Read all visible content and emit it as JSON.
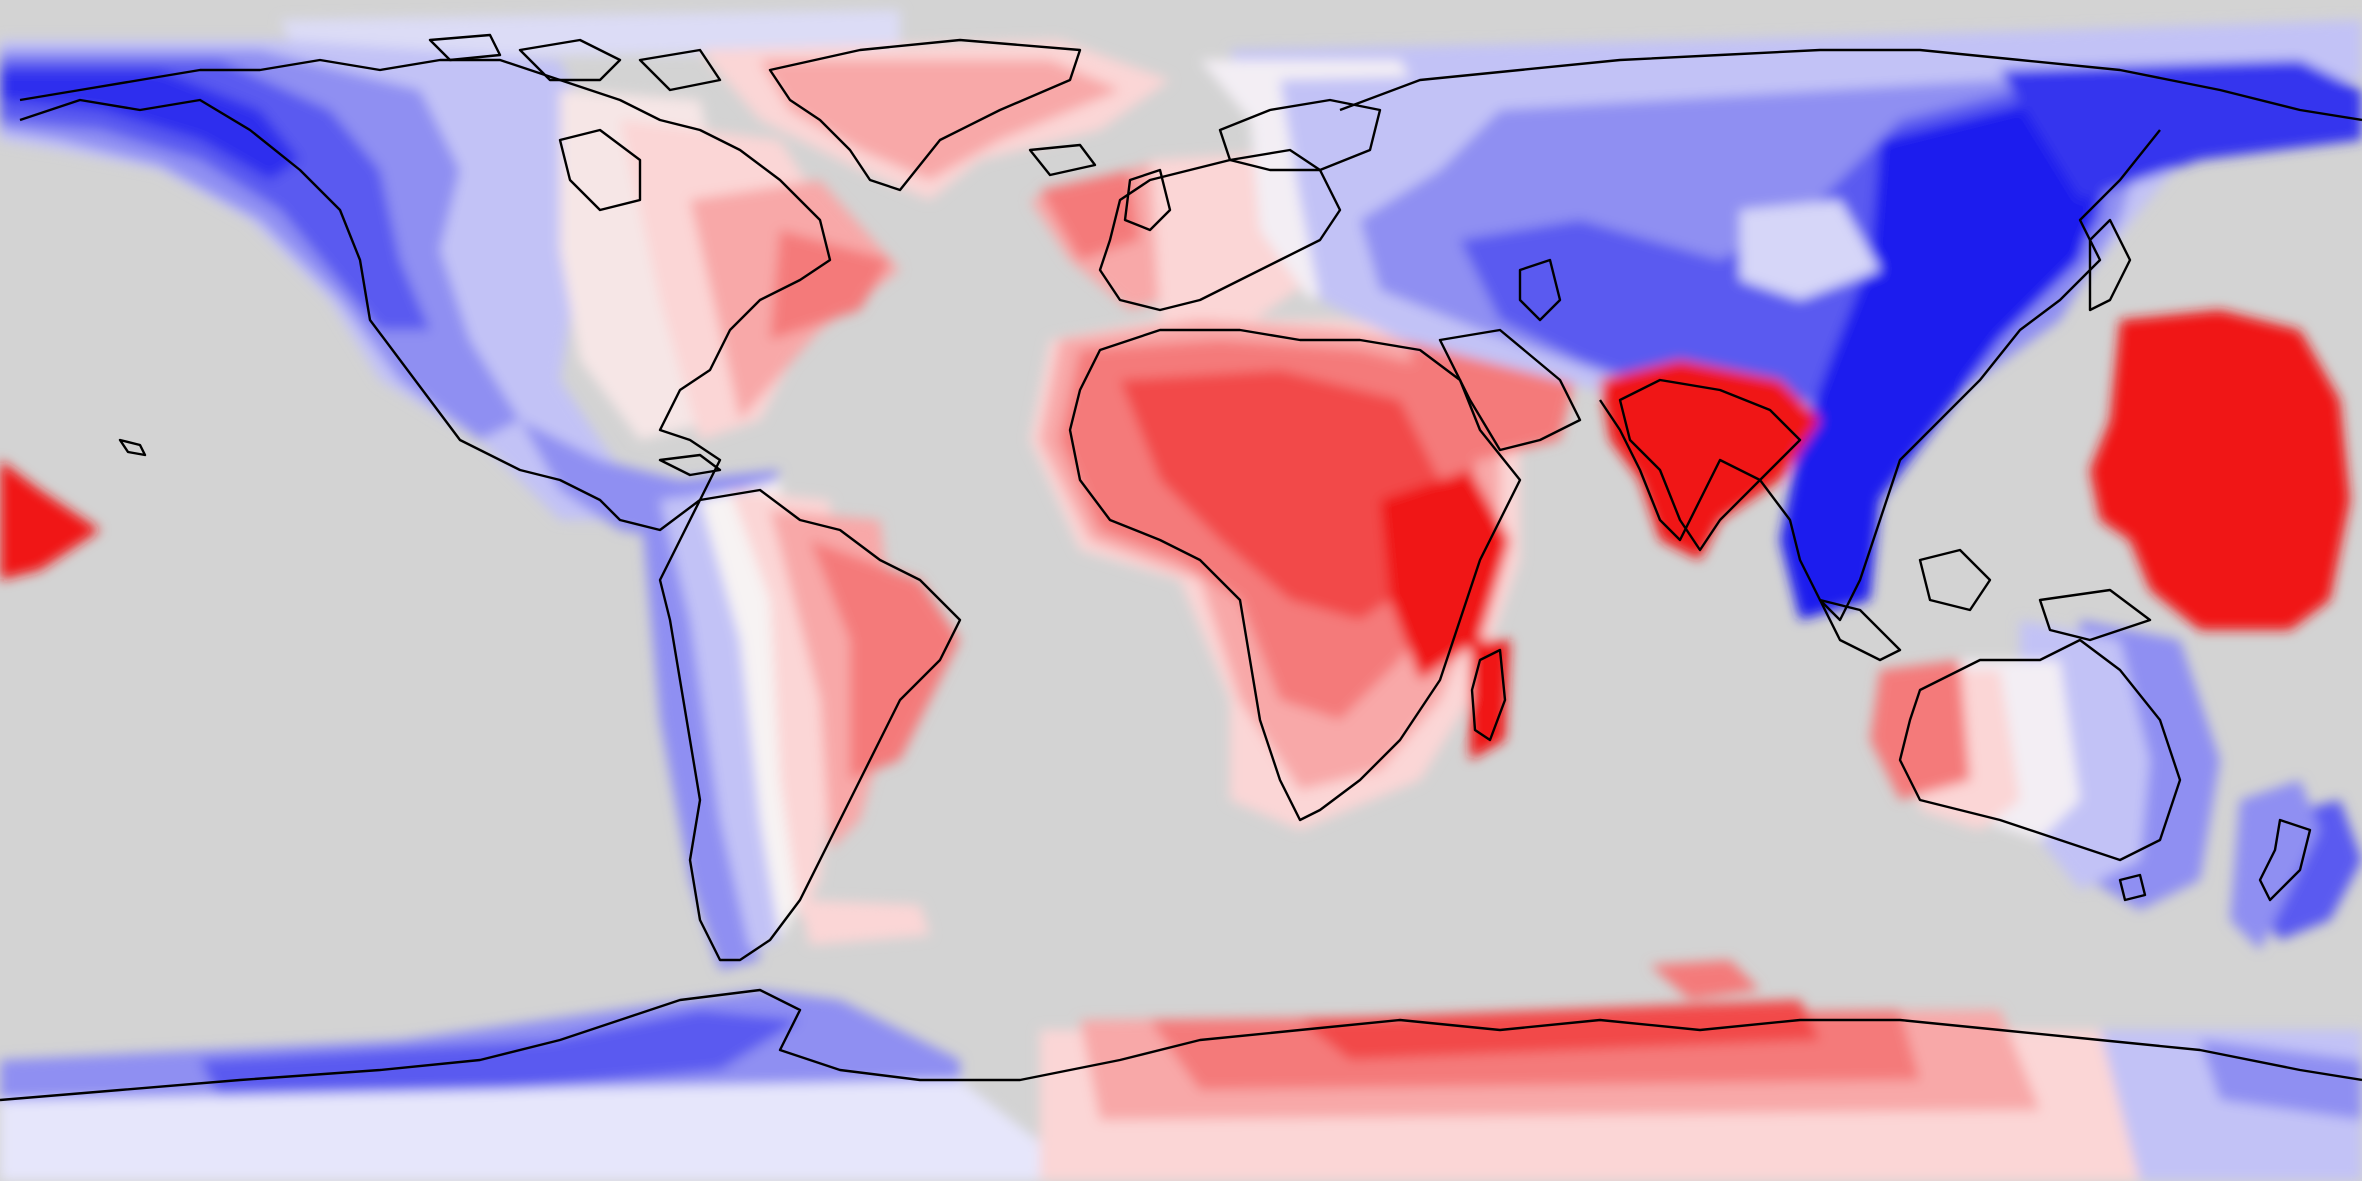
{
  "map": {
    "projection": "equirectangular",
    "ocean_color": "#d3d3d3",
    "coastline_color": "#000000",
    "scale_colors": {
      "dark_blue": "#0a0aee",
      "blue": "#5a5af0",
      "mid_blue": "#8f8ff2",
      "light_blue": "#c2c2f6",
      "pale_blue": "#e6e6fb",
      "white": "#f7f3f3",
      "pale_red": "#fbd6d6",
      "light_red": "#f8a8a8",
      "mid_red": "#f47a7a",
      "red": "#f24a4a",
      "dark_red": "#f01818"
    },
    "regions": [
      {
        "name": "alaska-canada",
        "tone": "blue"
      },
      {
        "name": "north-america-east",
        "tone": "red"
      },
      {
        "name": "greenland",
        "tone": "red"
      },
      {
        "name": "south-america",
        "tone": "red"
      },
      {
        "name": "europe",
        "tone": "red"
      },
      {
        "name": "africa",
        "tone": "red"
      },
      {
        "name": "asia",
        "tone": "blue"
      },
      {
        "name": "india",
        "tone": "red"
      },
      {
        "name": "southeast-asia",
        "tone": "blue"
      },
      {
        "name": "pacific-anomaly",
        "tone": "red"
      },
      {
        "name": "australia",
        "tone": "red"
      },
      {
        "name": "antarctica",
        "tone": "mixed"
      }
    ]
  }
}
